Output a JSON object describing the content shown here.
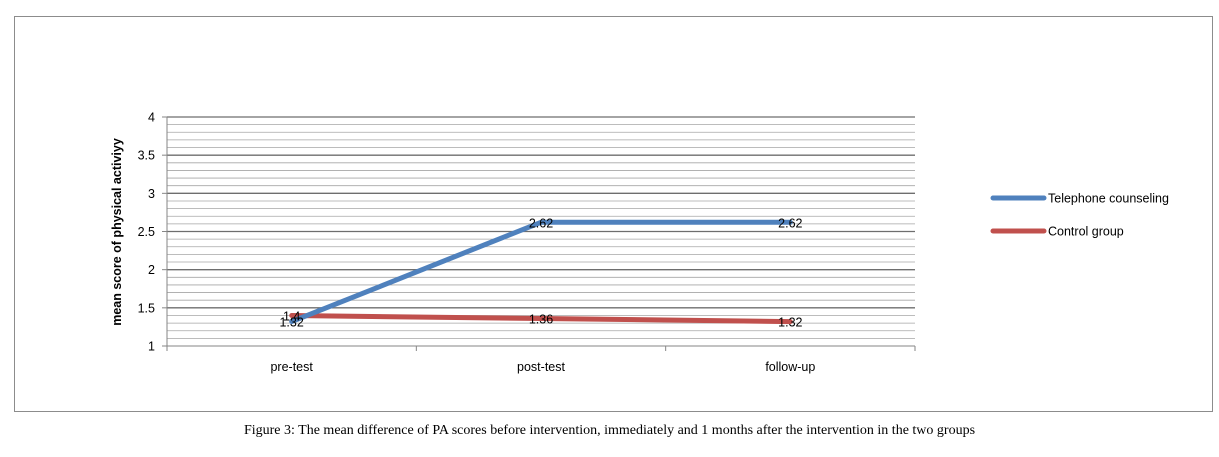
{
  "chart_data": {
    "type": "line",
    "categories": [
      "pre-test",
      "post-test",
      "follow-up"
    ],
    "series": [
      {
        "name": "Telephone counseling",
        "color": "#4f81bd",
        "values": [
          1.32,
          2.62,
          2.62
        ],
        "labels": [
          "1.32",
          "2.62",
          "2.62"
        ]
      },
      {
        "name": "Control group",
        "color": "#c0504d",
        "values": [
          1.4,
          1.36,
          1.32
        ],
        "labels": [
          "1.4",
          "1.36",
          "1.32"
        ]
      }
    ],
    "ylabel": "mean score of physical activiyy",
    "xlabel": "",
    "ylim": [
      1,
      4
    ],
    "yticks": [
      "1",
      "1.5",
      "2",
      "2.5",
      "3",
      "3.5",
      "4"
    ],
    "minor_grid_step": 0.1,
    "grid": true,
    "legend_position": "right"
  },
  "caption": "Figure 3: The mean difference of PA scores before intervention, immediately and 1 months after the intervention in the two groups"
}
